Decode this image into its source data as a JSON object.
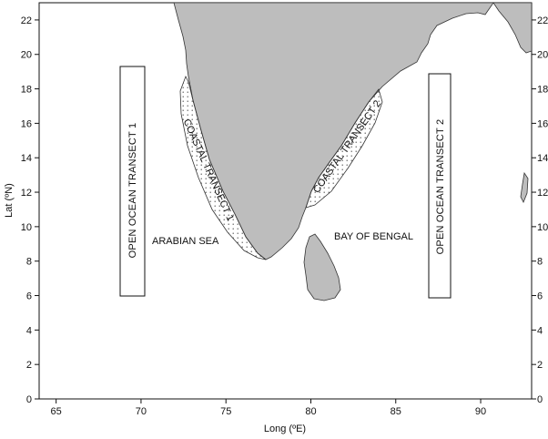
{
  "map": {
    "x_axis": {
      "label": "Long (ºE)",
      "range": [
        64,
        93
      ],
      "ticks": [
        65,
        70,
        75,
        80,
        85,
        90
      ]
    },
    "y_axis": {
      "label": "Lat (ºN)",
      "range": [
        0,
        23
      ],
      "ticks": [
        0,
        2,
        4,
        6,
        8,
        10,
        12,
        14,
        16,
        18,
        20,
        22
      ],
      "mirrored_right": true
    },
    "colors": {
      "land": "#bdbdbd",
      "land_stroke": "#333333",
      "stipple": "#555555"
    },
    "labels": {
      "arabian_sea": "ARABIAN SEA",
      "bay_of_bengal": "BAY OF BENGAL",
      "coastal_transect_1": "COASTAL TRANSECT 1",
      "coastal_transect_2": "COASTAL TRANSECT 2",
      "open_ocean_transect_1": "OPEN OCEAN TRANSECT 1",
      "open_ocean_transect_2": "OPEN OCEAN TRANSECT 2"
    },
    "open_ocean_transects": [
      {
        "name": "OPEN OCEAN TRANSECT 1",
        "lon": [
          68.8,
          70.3
        ],
        "lat": [
          6.0,
          19.3
        ]
      },
      {
        "name": "OPEN OCEAN TRANSECT 2",
        "lon": [
          87.3,
          88.6
        ],
        "lat": [
          5.9,
          18.9
        ]
      }
    ]
  }
}
